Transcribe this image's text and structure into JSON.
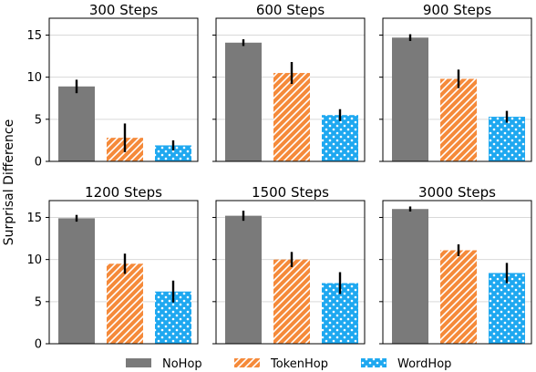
{
  "figure": {
    "ylabel": "Surprisal Difference"
  },
  "legend": [
    {
      "name": "NoHop",
      "color": "#7a7a7a",
      "pattern": "solid"
    },
    {
      "name": "TokenHop",
      "color": "#f58a3a",
      "pattern": "diagonal-hatch"
    },
    {
      "name": "WordHop",
      "color": "#1ea8f0",
      "pattern": "dots"
    }
  ],
  "chart_data": [
    {
      "type": "bar",
      "title": "300 Steps",
      "categories": [
        "NoHop",
        "TokenHop",
        "WordHop"
      ],
      "values": [
        8.9,
        2.8,
        1.9
      ],
      "errors": [
        0.8,
        1.7,
        0.6
      ],
      "ylim": [
        0,
        17
      ],
      "yticks": [
        0,
        5,
        10,
        15
      ],
      "grid": "horizontal"
    },
    {
      "type": "bar",
      "title": "600 Steps",
      "categories": [
        "NoHop",
        "TokenHop",
        "WordHop"
      ],
      "values": [
        14.1,
        10.5,
        5.5
      ],
      "errors": [
        0.4,
        1.3,
        0.7
      ],
      "ylim": [
        0,
        17
      ],
      "yticks": [
        0,
        5,
        10,
        15
      ],
      "grid": "horizontal"
    },
    {
      "type": "bar",
      "title": "900 Steps",
      "categories": [
        "NoHop",
        "TokenHop",
        "WordHop"
      ],
      "values": [
        14.7,
        9.8,
        5.3
      ],
      "errors": [
        0.4,
        1.1,
        0.7
      ],
      "ylim": [
        0,
        17
      ],
      "yticks": [
        0,
        5,
        10,
        15
      ],
      "grid": "horizontal"
    },
    {
      "type": "bar",
      "title": "1200 Steps",
      "categories": [
        "NoHop",
        "TokenHop",
        "WordHop"
      ],
      "values": [
        14.9,
        9.5,
        6.2
      ],
      "errors": [
        0.4,
        1.2,
        1.3
      ],
      "ylim": [
        0,
        17
      ],
      "yticks": [
        0,
        5,
        10,
        15
      ],
      "grid": "horizontal"
    },
    {
      "type": "bar",
      "title": "1500 Steps",
      "categories": [
        "NoHop",
        "TokenHop",
        "WordHop"
      ],
      "values": [
        15.2,
        10.0,
        7.2
      ],
      "errors": [
        0.6,
        0.9,
        1.3
      ],
      "ylim": [
        0,
        17
      ],
      "yticks": [
        0,
        5,
        10,
        15
      ],
      "grid": "horizontal"
    },
    {
      "type": "bar",
      "title": "3000 Steps",
      "categories": [
        "NoHop",
        "TokenHop",
        "WordHop"
      ],
      "values": [
        16.0,
        11.1,
        8.4
      ],
      "errors": [
        0.3,
        0.7,
        1.2
      ],
      "ylim": [
        0,
        17
      ],
      "yticks": [
        0,
        5,
        10,
        15
      ],
      "grid": "horizontal"
    }
  ]
}
